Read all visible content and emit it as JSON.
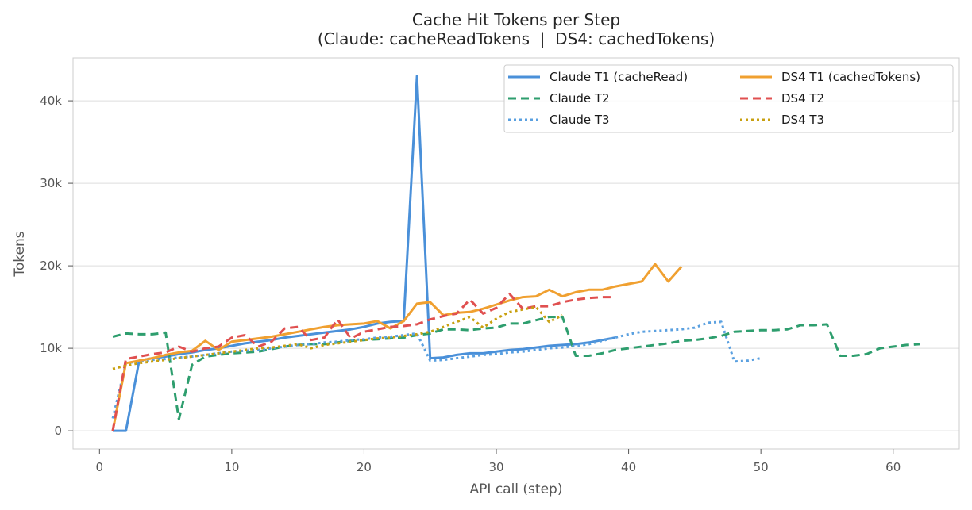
{
  "chart_data": {
    "type": "line",
    "title": "Cache Hit Tokens per Step",
    "subtitle": "(Claude: cacheReadTokens  |  DS4: cachedTokens)",
    "xlabel": "API call (step)",
    "ylabel": "Tokens",
    "xlim": [
      -2,
      65
    ],
    "ylim": [
      -2200,
      45200
    ],
    "xticks": [
      0,
      10,
      20,
      30,
      40,
      50,
      60
    ],
    "xtick_labels": [
      "0",
      "10",
      "20",
      "30",
      "40",
      "50",
      "60"
    ],
    "yticks": [
      0,
      10000,
      20000,
      30000,
      40000
    ],
    "ytick_labels": [
      "0",
      "10k",
      "20k",
      "30k",
      "40k"
    ],
    "grid": "horizontal",
    "legend_position": "top-right",
    "legend_columns": 2,
    "series": [
      {
        "name": "Claude T1 (cacheRead)",
        "color": "#4a90d9",
        "dash": "solid",
        "x": [
          1,
          2,
          3,
          4,
          5,
          6,
          7,
          8,
          9,
          10,
          11,
          12,
          13,
          14,
          15,
          16,
          17,
          18,
          19,
          20,
          21,
          22,
          23,
          24,
          25,
          26,
          27,
          28,
          29,
          30,
          31,
          32,
          33,
          34,
          35,
          36,
          37,
          38,
          39
        ],
        "y": [
          0,
          0,
          8500,
          8800,
          9000,
          9300,
          9500,
          9800,
          10000,
          10300,
          10600,
          10800,
          11000,
          11300,
          11500,
          11700,
          11900,
          12100,
          12300,
          12600,
          13000,
          13200,
          13300,
          43000,
          8800,
          8900,
          9200,
          9400,
          9400,
          9600,
          9800,
          9900,
          10100,
          10300,
          10400,
          10500,
          10700,
          11000,
          11300
        ]
      },
      {
        "name": "Claude T2",
        "color": "#2e9e6e",
        "dash": "dashed",
        "x": [
          1,
          2,
          3,
          4,
          5,
          6,
          7,
          8,
          9,
          10,
          11,
          12,
          13,
          14,
          15,
          16,
          17,
          18,
          19,
          20,
          21,
          22,
          23,
          24,
          25,
          26,
          27,
          28,
          29,
          30,
          31,
          32,
          33,
          34,
          35,
          36,
          37,
          38,
          39,
          40,
          41,
          42,
          43,
          44,
          45,
          46,
          47,
          48,
          49,
          50,
          51,
          52,
          53,
          54,
          55,
          56,
          57,
          58,
          59,
          60,
          61,
          62
        ],
        "y": [
          11400,
          11800,
          11700,
          11700,
          11900,
          1400,
          8000,
          9000,
          9200,
          9400,
          9500,
          9600,
          9900,
          10200,
          10400,
          10500,
          10500,
          10700,
          10900,
          11000,
          11100,
          11200,
          11300,
          11600,
          11800,
          12300,
          12300,
          12200,
          12400,
          12500,
          13000,
          13000,
          13400,
          13800,
          13800,
          9100,
          9100,
          9400,
          9800,
          10000,
          10200,
          10400,
          10600,
          10900,
          11000,
          11200,
          11500,
          12000,
          12100,
          12200,
          12200,
          12300,
          12800,
          12800,
          12900,
          9100,
          9100,
          9300,
          10000,
          10200,
          10400,
          10500
        ]
      },
      {
        "name": "Claude T3",
        "color": "#5aa0e0",
        "dash": "dotted",
        "x": [
          1,
          2,
          3,
          4,
          5,
          6,
          7,
          8,
          9,
          10,
          11,
          12,
          13,
          14,
          15,
          16,
          17,
          18,
          19,
          20,
          21,
          22,
          23,
          24,
          25,
          26,
          27,
          28,
          29,
          30,
          31,
          32,
          33,
          34,
          35,
          36,
          37,
          38,
          39,
          40,
          41,
          42,
          43,
          44,
          45,
          46,
          47,
          48,
          49,
          50
        ],
        "y": [
          1500,
          8200,
          8400,
          8600,
          8700,
          8900,
          9000,
          9200,
          9400,
          9600,
          9700,
          9800,
          10000,
          10200,
          10400,
          10500,
          10700,
          10800,
          11000,
          11100,
          11300,
          11400,
          11600,
          11800,
          8500,
          8600,
          8800,
          9000,
          9200,
          9300,
          9500,
          9600,
          9800,
          10000,
          10100,
          10300,
          10500,
          10900,
          11300,
          11700,
          12000,
          12100,
          12200,
          12300,
          12500,
          13100,
          13200,
          8400,
          8500,
          8800
        ]
      },
      {
        "name": "DS4 T1 (cachedTokens)",
        "color": "#f0a030",
        "dash": "solid",
        "x": [
          1,
          2,
          3,
          4,
          5,
          6,
          7,
          8,
          9,
          10,
          11,
          12,
          13,
          14,
          15,
          16,
          17,
          18,
          19,
          20,
          21,
          22,
          23,
          24,
          25,
          26,
          27,
          28,
          29,
          30,
          31,
          32,
          33,
          34,
          35,
          36,
          37,
          38,
          39,
          40,
          41,
          42,
          43,
          44
        ],
        "y": [
          0,
          8200,
          8500,
          8800,
          9200,
          9500,
          9700,
          10900,
          9800,
          10800,
          11000,
          11200,
          11400,
          11700,
          12000,
          12300,
          12600,
          12800,
          12900,
          13000,
          13300,
          12400,
          13300,
          15400,
          15600,
          14000,
          14300,
          14400,
          14800,
          15300,
          15800,
          16200,
          16300,
          17100,
          16300,
          16800,
          17100,
          17100,
          17500,
          17800,
          18100,
          20200,
          18100,
          19900
        ]
      },
      {
        "name": "DS4 T2",
        "color": "#e05050",
        "dash": "dashed",
        "x": [
          1,
          2,
          3,
          4,
          5,
          6,
          7,
          8,
          9,
          10,
          11,
          12,
          13,
          14,
          15,
          16,
          17,
          18,
          19,
          20,
          21,
          22,
          23,
          24,
          25,
          26,
          27,
          28,
          29,
          30,
          31,
          32,
          33,
          34,
          35,
          36,
          37,
          38,
          39
        ],
        "y": [
          0,
          8700,
          9000,
          9300,
          9500,
          10200,
          9600,
          10000,
          10200,
          11300,
          11600,
          10200,
          10800,
          12400,
          12600,
          11000,
          11300,
          13500,
          11200,
          12000,
          12300,
          12600,
          12700,
          12900,
          13500,
          13900,
          14200,
          15900,
          14200,
          14900,
          16600,
          14800,
          15100,
          15100,
          15600,
          15900,
          16100,
          16200,
          16200
        ]
      },
      {
        "name": "DS4 T3",
        "color": "#c8a010",
        "dash": "dotted",
        "x": [
          1,
          2,
          3,
          4,
          5,
          6,
          7,
          8,
          9,
          10,
          11,
          12,
          13,
          14,
          15,
          16,
          17,
          18,
          19,
          20,
          21,
          22,
          23,
          24,
          25,
          26,
          27,
          28,
          29,
          30,
          31,
          32,
          33,
          34,
          35
        ],
        "y": [
          7500,
          7900,
          8200,
          8400,
          8600,
          8800,
          9000,
          9200,
          9400,
          9600,
          9800,
          10000,
          10100,
          10300,
          10500,
          10000,
          10400,
          10600,
          10800,
          11000,
          11200,
          11300,
          11500,
          11700,
          12000,
          12600,
          13200,
          13800,
          12500,
          13600,
          14400,
          14700,
          15000,
          13200,
          14000
        ]
      }
    ]
  }
}
